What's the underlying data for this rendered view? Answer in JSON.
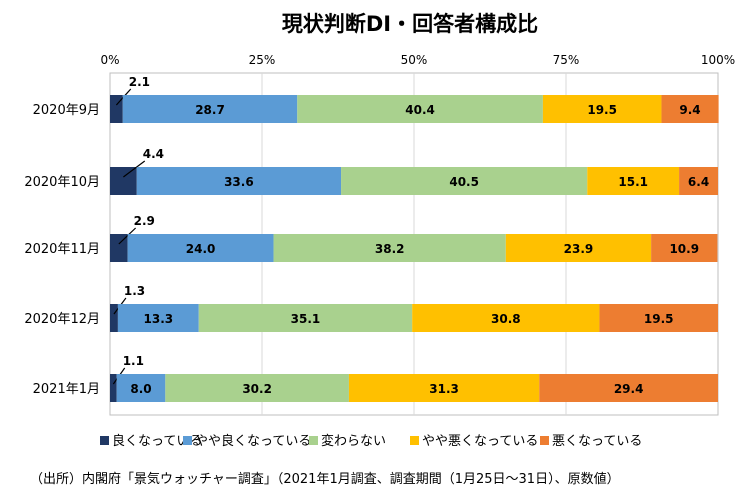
{
  "chart_data": {
    "type": "bar",
    "orientation": "horizontal",
    "stacked": "percent",
    "title": "現状判断DI・回答者構成比",
    "categories": [
      "2020年9月",
      "2020年10月",
      "2020年11月",
      "2020年12月",
      "2021年1月"
    ],
    "xlim": [
      0,
      100
    ],
    "x_ticks": [
      "0%",
      "25%",
      "50%",
      "75%",
      "100%"
    ],
    "grid": "vertical",
    "legend_position": "bottom",
    "series": [
      {
        "name": "良くなっている",
        "color": "#203864",
        "values": [
          2.1,
          4.4,
          2.9,
          1.3,
          1.1
        ]
      },
      {
        "name": "やや良くなっている",
        "color": "#5B9BD5",
        "values": [
          28.7,
          33.6,
          24.0,
          13.3,
          8.0
        ]
      },
      {
        "name": "変わらない",
        "color": "#A9D18E",
        "values": [
          40.4,
          40.5,
          38.2,
          35.1,
          30.2
        ]
      },
      {
        "name": "やや悪くなっている",
        "color": "#FFC000",
        "values": [
          19.5,
          15.1,
          23.9,
          30.8,
          31.3
        ]
      },
      {
        "name": "悪くなっている",
        "color": "#ED7D31",
        "values": [
          9.4,
          6.4,
          10.9,
          19.5,
          29.4
        ]
      }
    ]
  },
  "source_note": "（出所）内閣府「景気ウォッチャー調査」（2021年1月調査、調査期間（1月25日～31日）、原数値）"
}
